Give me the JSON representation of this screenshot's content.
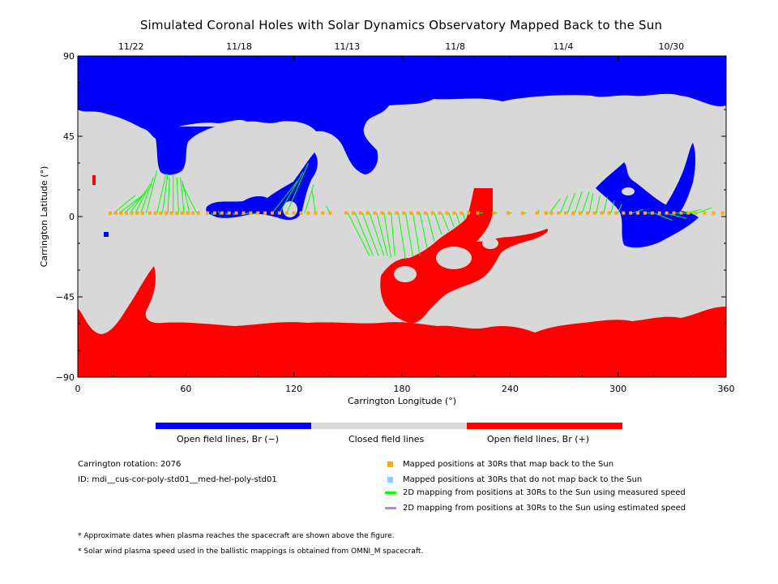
{
  "title": "Simulated Coronal Holes with Solar Dynamics Observatory Mapped Back to the Sun",
  "colors": {
    "open_negative": "#0000ff",
    "closed": "#d8d8d8",
    "open_positive": "#ff0000",
    "mapped": "#ffaa00",
    "not_mapped": "#87cefa",
    "measured": "#00ff00",
    "estimated": "#b380ff"
  },
  "chart_data": {
    "type": "heatmap",
    "xlabel": "Carrington Longitude (°)",
    "ylabel": "Carrington Latitude (°)",
    "xlim": [
      0,
      360
    ],
    "ylim": [
      -90,
      90
    ],
    "x_ticks": [
      "0",
      "60",
      "120",
      "180",
      "240",
      "300",
      "360"
    ],
    "y_ticks": [
      "90",
      "45",
      "0",
      "−45",
      "−90"
    ],
    "top_dates": [
      {
        "lon": 30,
        "label": "11/22"
      },
      {
        "lon": 90,
        "label": "11/18"
      },
      {
        "lon": 150,
        "label": "11/13"
      },
      {
        "lon": 210,
        "label": "11/8"
      },
      {
        "lon": 270,
        "label": "11/4"
      },
      {
        "lon": 330,
        "label": "10/30"
      }
    ],
    "categories": [
      "Open field lines, Br (−)",
      "Closed field lines",
      "Open field lines, Br (+)"
    ],
    "mapping_lines": [
      [
        20,
        2,
        32,
        12
      ],
      [
        23,
        2,
        36,
        12
      ],
      [
        26,
        2,
        38,
        14
      ],
      [
        29,
        2,
        39,
        16
      ],
      [
        32,
        2,
        40,
        18
      ],
      [
        35,
        2,
        42,
        22
      ],
      [
        38,
        2,
        44,
        26
      ],
      [
        44,
        2,
        49,
        24
      ],
      [
        47,
        2,
        50,
        24
      ],
      [
        50,
        2,
        51,
        22
      ],
      [
        53,
        2,
        53,
        24
      ],
      [
        56,
        2,
        55,
        22
      ],
      [
        59,
        2,
        57,
        22
      ],
      [
        62,
        2,
        58,
        20
      ],
      [
        66,
        2,
        58,
        18
      ],
      [
        75,
        1,
        74,
        2
      ],
      [
        79,
        1,
        78,
        3
      ],
      [
        83,
        1,
        82,
        2
      ],
      [
        87,
        1,
        86,
        2
      ],
      [
        91,
        1,
        95,
        2
      ],
      [
        95,
        1,
        100,
        2
      ],
      [
        108,
        2,
        122,
        20
      ],
      [
        112,
        2,
        125,
        25
      ],
      [
        116,
        2,
        128,
        30
      ],
      [
        126,
        2,
        131,
        18
      ],
      [
        132,
        2,
        130,
        15
      ],
      [
        140,
        2,
        138,
        6
      ],
      [
        150,
        2,
        162,
        -22
      ],
      [
        154,
        2,
        164,
        -22
      ],
      [
        158,
        2,
        167,
        -22
      ],
      [
        162,
        2,
        170,
        -22
      ],
      [
        166,
        2,
        172,
        -22
      ],
      [
        170,
        2,
        174,
        -23
      ],
      [
        174,
        2,
        176,
        -22
      ],
      [
        178,
        2,
        182,
        -24
      ],
      [
        182,
        2,
        186,
        -22
      ],
      [
        186,
        2,
        190,
        -22
      ],
      [
        190,
        2,
        194,
        -18
      ],
      [
        194,
        2,
        198,
        -14
      ],
      [
        198,
        2,
        202,
        -10
      ],
      [
        202,
        2,
        206,
        -8
      ],
      [
        206,
        2,
        209,
        -6
      ],
      [
        210,
        2,
        212,
        -4
      ],
      [
        214,
        2,
        215,
        -2
      ],
      [
        223,
        2,
        225,
        2
      ],
      [
        232,
        2,
        233,
        2
      ],
      [
        240,
        2,
        241,
        2
      ],
      [
        248,
        2,
        249,
        2
      ],
      [
        256,
        2,
        256,
        4
      ],
      [
        262,
        2,
        268,
        10
      ],
      [
        268,
        2,
        272,
        12
      ],
      [
        272,
        2,
        276,
        13
      ],
      [
        276,
        2,
        280,
        14
      ],
      [
        280,
        2,
        284,
        14
      ],
      [
        284,
        2,
        286,
        13
      ],
      [
        288,
        2,
        290,
        12
      ],
      [
        292,
        2,
        294,
        11
      ],
      [
        296,
        2,
        298,
        9
      ],
      [
        300,
        2,
        302,
        7
      ],
      [
        308,
        2,
        314,
        4
      ],
      [
        314,
        2,
        318,
        2
      ],
      [
        320,
        2,
        330,
        -2
      ],
      [
        326,
        2,
        338,
        -1
      ],
      [
        332,
        2,
        342,
        2
      ],
      [
        338,
        2,
        346,
        4
      ],
      [
        344,
        2,
        352,
        5
      ]
    ],
    "mapped_points_lon": [
      18,
      21,
      24,
      27,
      30,
      33,
      36,
      40,
      43,
      46,
      49,
      52,
      55,
      58,
      61,
      64,
      67,
      72,
      76,
      80,
      84,
      88,
      92,
      96,
      100,
      104,
      108,
      112,
      116,
      120,
      124,
      128,
      132,
      136,
      140,
      149,
      153,
      157,
      161,
      165,
      169,
      173,
      177,
      181,
      185,
      189,
      193,
      197,
      201,
      205,
      209,
      213,
      217,
      222,
      231,
      239,
      247,
      255,
      260,
      263,
      267,
      271,
      275,
      279,
      283,
      287,
      291,
      295,
      299,
      303,
      307,
      311,
      315,
      319,
      323,
      327,
      331,
      335,
      339,
      343,
      348,
      353,
      358
    ]
  },
  "colorbar": {
    "label_neg": "Open field lines, Br (−)",
    "label_closed": "Closed field lines",
    "label_pos": "Open field lines, Br (+)"
  },
  "info": {
    "rotation": "Carrington rotation: 2076",
    "id": "ID: mdi__cus-cor-poly-std01__med-hel-poly-std01"
  },
  "legend": {
    "mapped": "Mapped positions at 30Rs that map back to the Sun",
    "not_mapped": "Mapped positions at 30Rs that do not map back to the Sun",
    "measured": "2D mapping from positions at 30Rs to the Sun using measured speed",
    "estimated": "2D mapping from positions at 30Rs to the Sun using estimated speed"
  },
  "notes": {
    "n1": "* Approximate dates when plasma reaches the spacecraft are shown above the figure.",
    "n2": "* Solar wind plasma speed used in the ballistic mappings is obtained from OMNI_M spacecraft."
  }
}
